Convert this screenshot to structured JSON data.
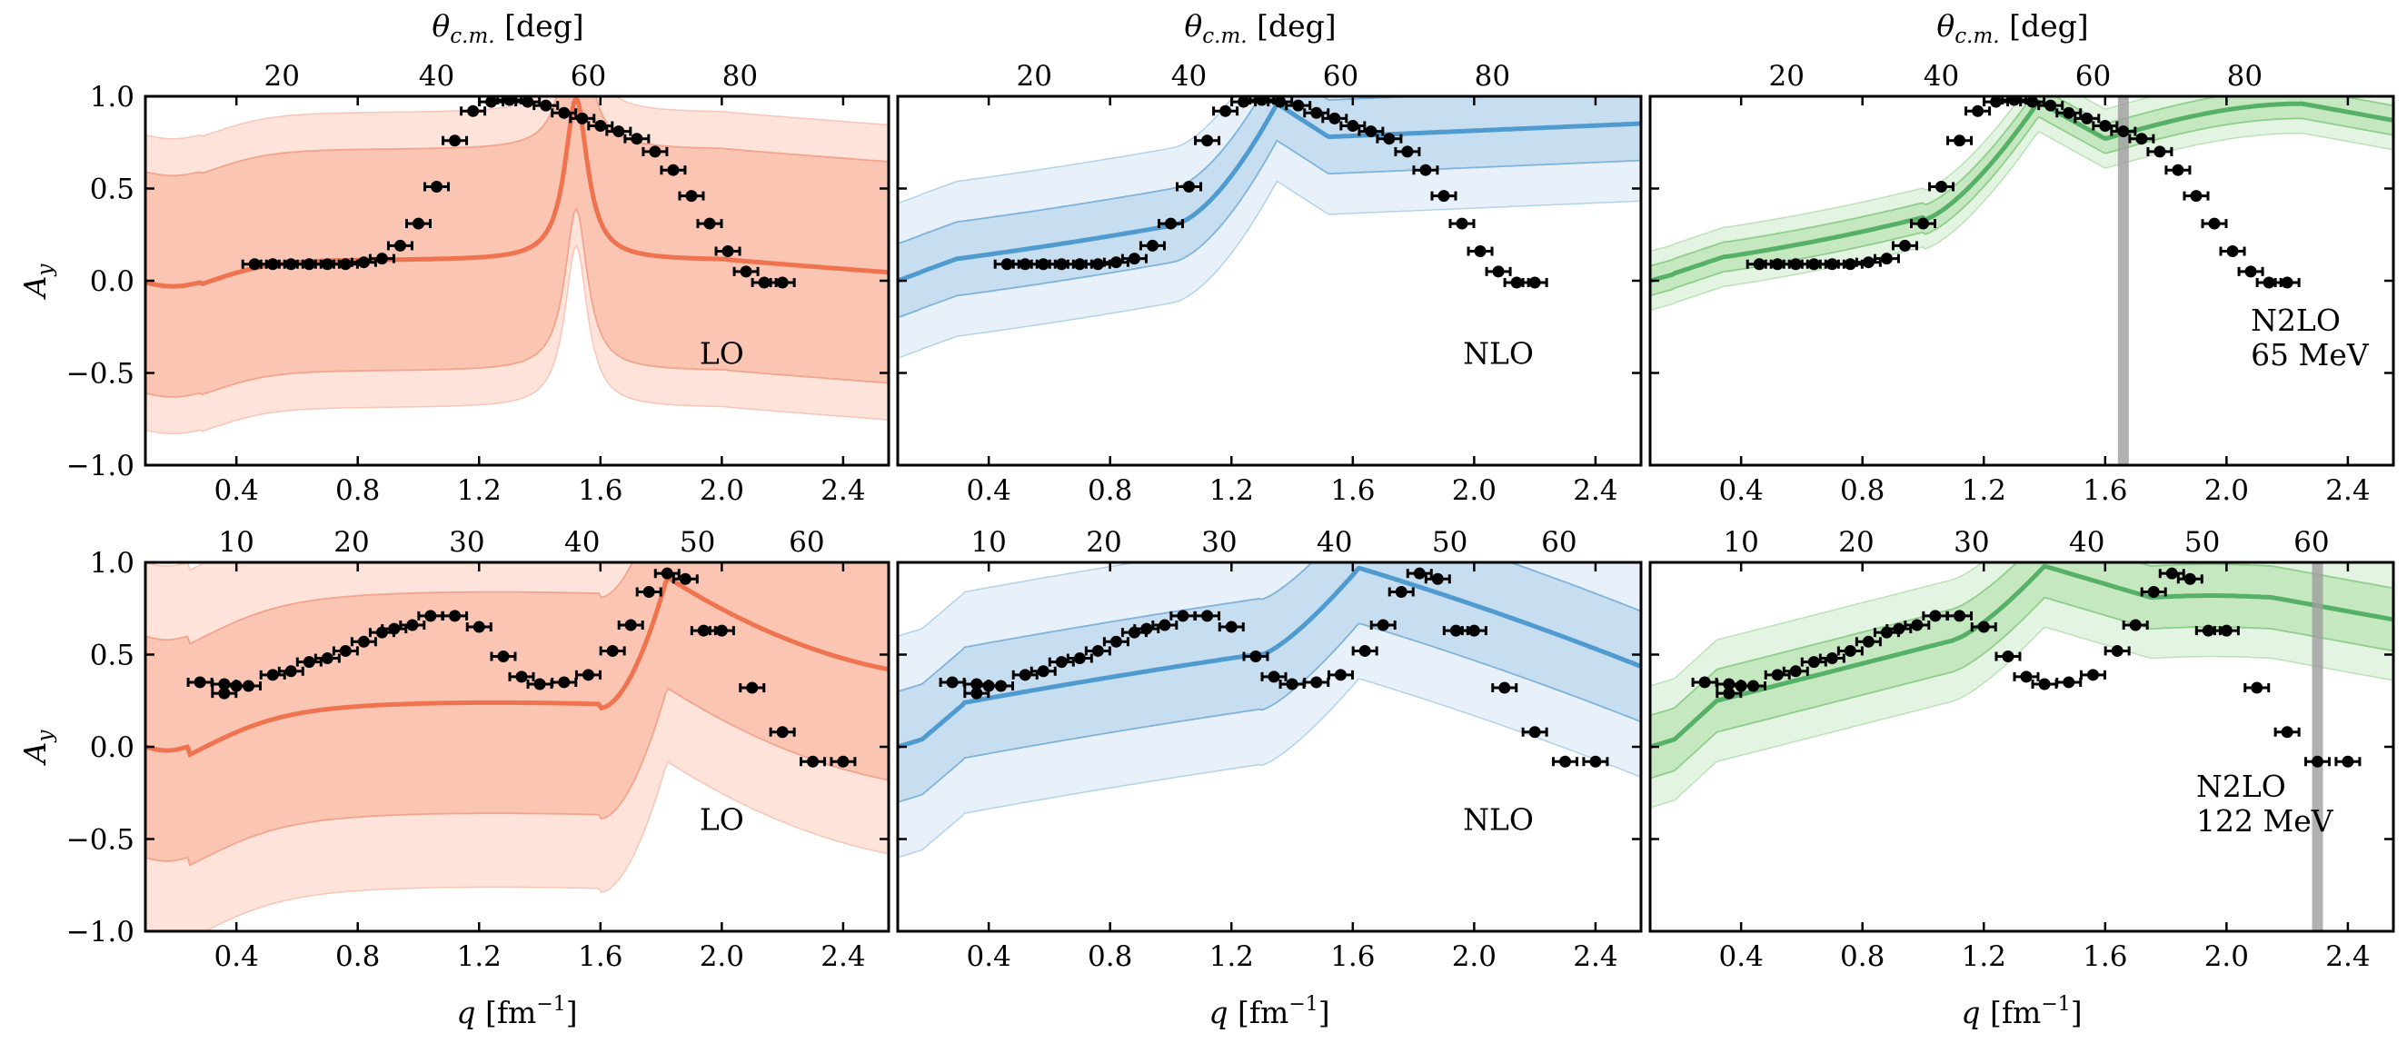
{
  "chart_data": {
    "type": "line",
    "shared": {
      "xlabel": "q [fm⁻¹]",
      "xlabel_var": "q",
      "xlabel_unit": "[fm",
      "xlabel_exp": "−1",
      "xlabel_close": "]",
      "ylabel": "Ay",
      "ylabel_var": "A",
      "ylabel_sub": "y",
      "top_xlabel_var": "θ",
      "top_xlabel_sub": "c.m.",
      "top_xlabel_unit": "[deg]",
      "xlim": [
        0.1,
        2.55
      ],
      "ylim": [
        -1.0,
        1.0
      ],
      "x_ticks": [
        "0.4",
        "0.8",
        "1.2",
        "1.6",
        "2.0",
        "2.4"
      ],
      "y_ticks": [
        "1.0",
        "0.5",
        "0.0",
        "−0.5",
        "−1.0"
      ]
    },
    "rows": [
      {
        "energy": "65 MeV",
        "top_axis_ticks": [
          {
            "label": "20",
            "q": 0.55
          },
          {
            "label": "40",
            "q": 1.06
          },
          {
            "label": "60",
            "q": 1.56
          },
          {
            "label": "80",
            "q": 2.06
          }
        ],
        "data": {
          "x": [
            0.46,
            0.52,
            0.58,
            0.64,
            0.7,
            0.76,
            0.82,
            0.88,
            0.94,
            1.0,
            1.06,
            1.12,
            1.18,
            1.24,
            1.3,
            1.36,
            1.42,
            1.48,
            1.54,
            1.6,
            1.66,
            1.72,
            1.78,
            1.84,
            1.9,
            1.96,
            2.02,
            2.08,
            2.14,
            2.2
          ],
          "y": [
            0.09,
            0.09,
            0.09,
            0.09,
            0.09,
            0.09,
            0.1,
            0.12,
            0.19,
            0.31,
            0.51,
            0.76,
            0.92,
            0.97,
            0.98,
            0.97,
            0.95,
            0.91,
            0.88,
            0.84,
            0.81,
            0.77,
            0.7,
            0.6,
            0.46,
            0.31,
            0.16,
            0.05,
            -0.01,
            -0.01
          ]
        }
      },
      {
        "energy": "122 MeV",
        "top_axis_ticks": [
          {
            "label": "10",
            "q": 0.4
          },
          {
            "label": "20",
            "q": 0.78
          },
          {
            "label": "30",
            "q": 1.16
          },
          {
            "label": "40",
            "q": 1.54
          },
          {
            "label": "50",
            "q": 1.92
          },
          {
            "label": "60",
            "q": 2.28
          }
        ],
        "data": {
          "x": [
            0.28,
            0.36,
            0.36,
            0.4,
            0.44,
            0.52,
            0.58,
            0.64,
            0.7,
            0.76,
            0.82,
            0.88,
            0.92,
            0.98,
            1.04,
            1.12,
            1.2,
            1.28,
            1.34,
            1.4,
            1.48,
            1.56,
            1.64,
            1.7,
            1.76,
            1.82,
            1.88,
            1.94,
            2.0,
            2.1,
            2.2,
            2.3,
            2.4
          ],
          "y": [
            0.35,
            0.34,
            0.29,
            0.33,
            0.33,
            0.39,
            0.41,
            0.46,
            0.48,
            0.52,
            0.57,
            0.62,
            0.64,
            0.66,
            0.71,
            0.71,
            0.65,
            0.49,
            0.38,
            0.34,
            0.35,
            0.39,
            0.52,
            0.66,
            0.84,
            0.94,
            0.91,
            0.63,
            0.63,
            0.32,
            0.08,
            -0.08,
            -0.08
          ]
        }
      }
    ],
    "panels": [
      {
        "row": 0,
        "col": 0,
        "order": "LO",
        "label_lines": [
          "LO"
        ],
        "color": "#f0734f",
        "light": "#fde3da",
        "mid": "#fbc5b3",
        "band_edge": "#f2a48c",
        "band_width_inner": 0.6,
        "band_width_outer": 0.8,
        "breakdown_q": null
      },
      {
        "row": 0,
        "col": 1,
        "order": "NLO",
        "label_lines": [
          "NLO"
        ],
        "color": "#4f9bd0",
        "light": "#e8f1fa",
        "mid": "#c7ddf0",
        "band_edge": "#7fb3db",
        "band_width_inner": 0.2,
        "band_width_outer": 0.42,
        "breakdown_q": null
      },
      {
        "row": 0,
        "col": 2,
        "order": "N2LO",
        "label_lines": [
          "N2LO",
          "65 MeV"
        ],
        "color": "#56b068",
        "light": "#e4f4e2",
        "mid": "#c6e8c1",
        "band_edge": "#8fce8a",
        "band_width_inner": 0.08,
        "band_width_outer": 0.16,
        "breakdown_q": 1.66
      },
      {
        "row": 1,
        "col": 0,
        "order": "LO",
        "label_lines": [
          "LO"
        ],
        "color": "#f0734f",
        "light": "#fde3da",
        "mid": "#fbc5b3",
        "band_edge": "#f2a48c",
        "band_width_inner": 0.6,
        "band_width_outer": 1.0,
        "breakdown_q": null
      },
      {
        "row": 1,
        "col": 1,
        "order": "NLO",
        "label_lines": [
          "NLO"
        ],
        "color": "#4f9bd0",
        "light": "#e8f1fa",
        "mid": "#c7ddf0",
        "band_edge": "#7fb3db",
        "band_width_inner": 0.3,
        "band_width_outer": 0.6,
        "breakdown_q": null
      },
      {
        "row": 1,
        "col": 2,
        "order": "N2LO",
        "label_lines": [
          "N2LO",
          "122 MeV"
        ],
        "color": "#56b068",
        "light": "#e4f4e2",
        "mid": "#c6e8c1",
        "band_edge": "#8fce8a",
        "band_width_inner": 0.17,
        "band_width_outer": 0.33,
        "breakdown_q": 2.3
      }
    ]
  }
}
